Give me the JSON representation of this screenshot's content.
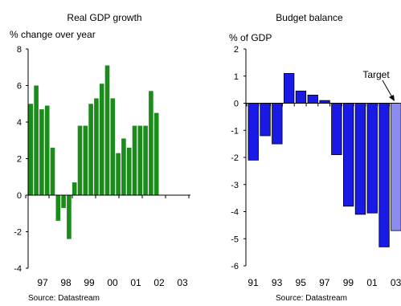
{
  "source_left": "Source: Datastream",
  "source_right": "Source: Datastream",
  "chart_data": [
    {
      "type": "bar",
      "title": "Real GDP growth",
      "ylabel": "% change over year",
      "xlabel": "",
      "ylim": [
        -4,
        8
      ],
      "yticks": [
        -4,
        -2,
        0,
        2,
        4,
        6,
        8
      ],
      "xticklabels": [
        "97",
        "98",
        "99",
        "00",
        "01",
        "02",
        "03"
      ],
      "bar_color": "#1a8c1a",
      "values": [
        5.0,
        6.0,
        4.7,
        4.9,
        2.6,
        -1.4,
        -0.7,
        -2.4,
        0.7,
        3.8,
        3.8,
        5.0,
        5.3,
        6.1,
        7.1,
        5.3,
        2.3,
        3.1,
        2.6,
        3.8,
        3.8,
        3.8,
        5.7,
        4.5
      ]
    },
    {
      "type": "bar",
      "title": "Budget balance",
      "ylabel": "% of GDP",
      "xlabel": "",
      "ylim": [
        -6,
        2
      ],
      "yticks": [
        -6,
        -5,
        -4,
        -3,
        -2,
        -1,
        0,
        1,
        2
      ],
      "xticklabels": [
        "91",
        "93",
        "95",
        "97",
        "99",
        "01",
        "03"
      ],
      "categories": [
        "91",
        "92",
        "93",
        "94",
        "95",
        "96",
        "97",
        "98",
        "99",
        "00",
        "01",
        "02",
        "03"
      ],
      "bar_color": "#1a1ae6",
      "target_color": "#8c8cf0",
      "annotation": "Target",
      "values": [
        -2.1,
        -1.2,
        -1.5,
        1.1,
        0.45,
        0.3,
        0.1,
        -1.9,
        -3.8,
        -4.1,
        -4.05,
        -5.3,
        -4.7
      ]
    }
  ]
}
